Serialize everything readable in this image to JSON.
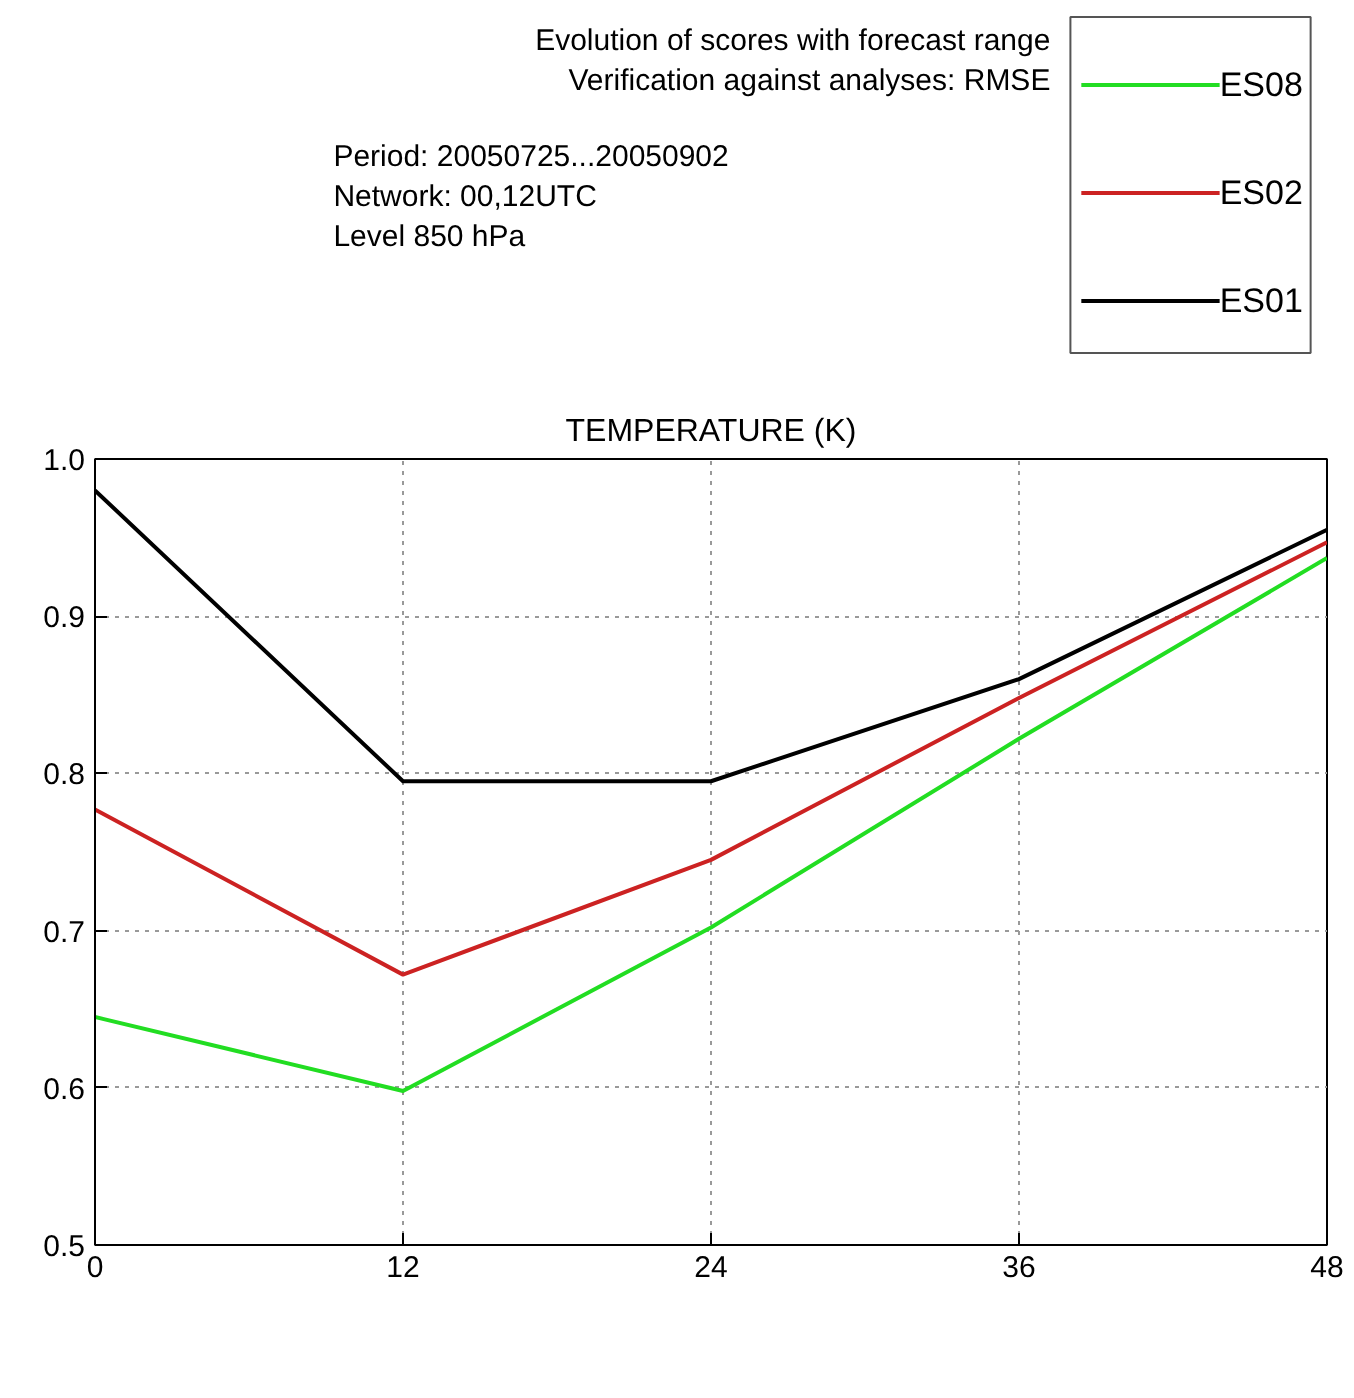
{
  "chart_data": {
    "type": "line",
    "title": "TEMPERATURE (K)",
    "annotations": [
      "Evolution of scores with forecast range",
      "Verification against analyses: RMSE",
      "Period: 20050725...20050902",
      "Network: 00,12UTC",
      "Level 850 hPa"
    ],
    "x": [
      0,
      12,
      24,
      36,
      48
    ],
    "series": [
      {
        "name": "ES08",
        "color": "#22dd22",
        "values": [
          0.645,
          0.598,
          0.702,
          0.822,
          0.937
        ]
      },
      {
        "name": "ES02",
        "color": "#cc2222",
        "values": [
          0.777,
          0.672,
          0.745,
          0.848,
          0.947
        ]
      },
      {
        "name": "ES01",
        "color": "#000000",
        "values": [
          0.98,
          0.795,
          0.795,
          0.86,
          0.955
        ]
      }
    ],
    "xlim": [
      0,
      48
    ],
    "ylim": [
      0.5,
      1.0
    ],
    "xticks": [
      0,
      12,
      24,
      36,
      48
    ],
    "yticks": [
      0.5,
      0.6,
      0.7,
      0.8,
      0.9,
      {
        "value": 1.0,
        "label": "1.0"
      }
    ],
    "grid": true,
    "legend": "top right",
    "marker": "none",
    "line_style": "solid"
  }
}
